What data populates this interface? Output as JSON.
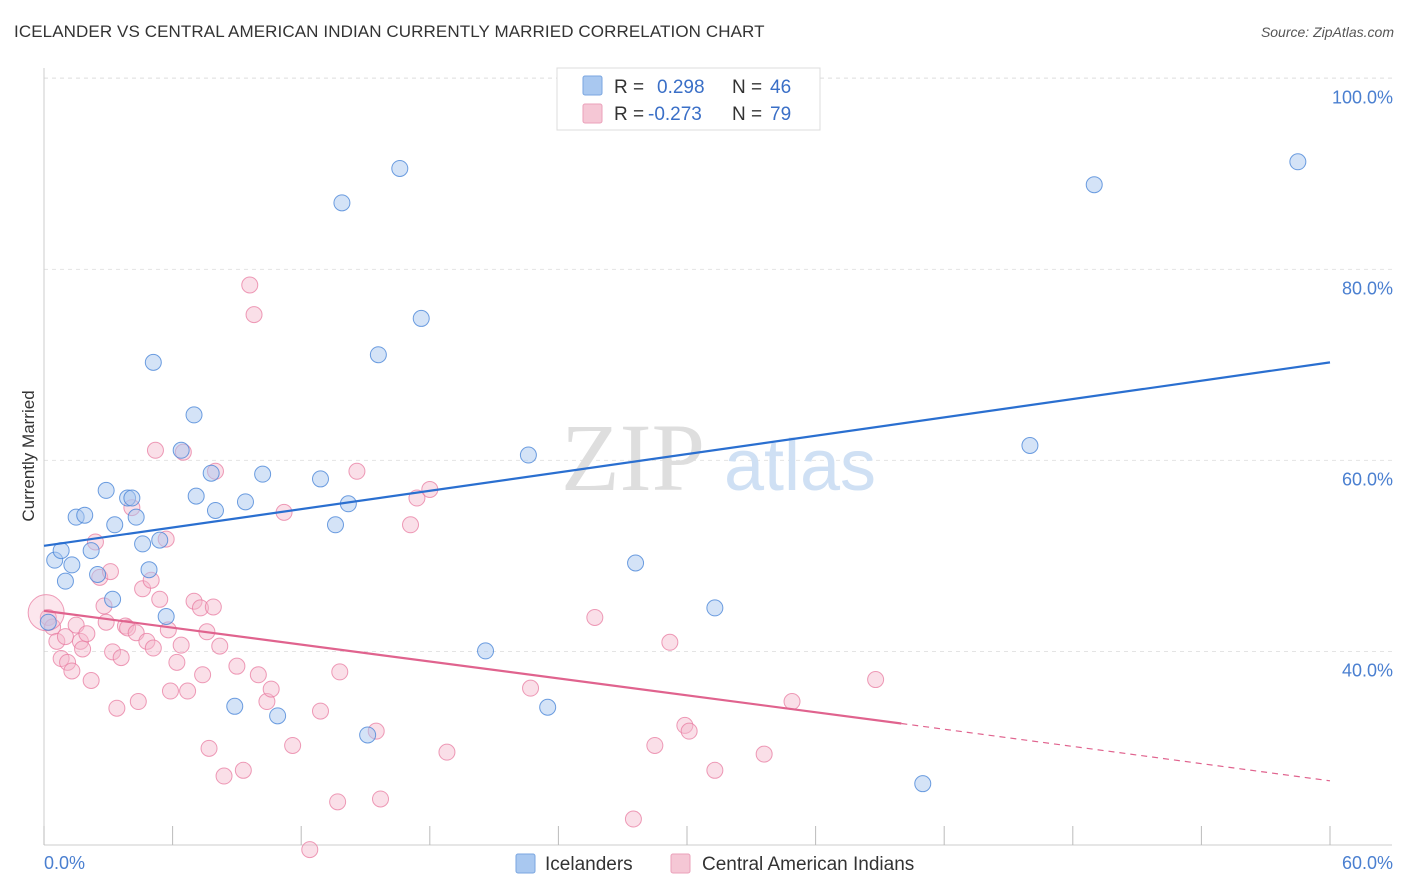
{
  "header": {
    "title": "ICELANDER VS CENTRAL AMERICAN INDIAN CURRENTLY MARRIED CORRELATION CHART",
    "source": "Source: ZipAtlas.com"
  },
  "watermark": {
    "zip": "ZIP",
    "atlas": "atlas"
  },
  "legend_top": {
    "rows": [
      {
        "r_label": "R =",
        "r_value": "0.298",
        "n_label": "N =",
        "n_value": "46",
        "color": "#a9c8f0"
      },
      {
        "r_label": "R =",
        "r_value": "-0.273",
        "n_label": "N =",
        "n_value": "79",
        "color": "#f5b8cb"
      }
    ]
  },
  "legend_bottom": {
    "items": [
      {
        "label": "Icelanders",
        "color": "#a9c8f0"
      },
      {
        "label": "Central American Indians",
        "color": "#f5b8cb"
      }
    ]
  },
  "chart_data": {
    "type": "scatter",
    "title": "ICELANDER VS CENTRAL AMERICAN INDIAN CURRENTLY MARRIED CORRELATION CHART",
    "xlabel": "",
    "ylabel": "Currently Married",
    "xlim": [
      0,
      60
    ],
    "ylim": [
      20,
      102
    ],
    "x_tick_labels": [
      "0.0%",
      "60.0%"
    ],
    "y_ticks": [
      40,
      60,
      80,
      100
    ],
    "y_tick_labels": [
      "40.0%",
      "60.0%",
      "80.0%",
      "100.0%"
    ],
    "grid": true,
    "legend_position": "top-center",
    "series": [
      {
        "name": "Icelanders",
        "color": "#4a86d8",
        "fill": "#a9c8f0",
        "trend": {
          "x": [
            0,
            60
          ],
          "y": [
            53.0,
            72.2
          ],
          "color": "#2a6fd0",
          "dashed_from": null
        },
        "points": [
          [
            0.2,
            45.0
          ],
          [
            0.5,
            51.5
          ],
          [
            0.8,
            52.5
          ],
          [
            1.0,
            49.3
          ],
          [
            1.3,
            51.0
          ],
          [
            1.5,
            56.0
          ],
          [
            1.9,
            56.2
          ],
          [
            2.2,
            52.5
          ],
          [
            2.5,
            50.0
          ],
          [
            2.9,
            58.8
          ],
          [
            3.2,
            47.4
          ],
          [
            3.3,
            55.2
          ],
          [
            3.9,
            58.0
          ],
          [
            4.1,
            58.0
          ],
          [
            4.3,
            56.0
          ],
          [
            4.6,
            53.2
          ],
          [
            4.9,
            50.5
          ],
          [
            5.1,
            72.2
          ],
          [
            5.4,
            53.6
          ],
          [
            5.7,
            45.6
          ],
          [
            6.4,
            63.0
          ],
          [
            7.0,
            66.7
          ],
          [
            7.1,
            58.2
          ],
          [
            7.8,
            60.6
          ],
          [
            8.0,
            56.7
          ],
          [
            8.9,
            36.2
          ],
          [
            9.4,
            57.6
          ],
          [
            10.2,
            60.5
          ],
          [
            10.9,
            35.2
          ],
          [
            12.9,
            60.0
          ],
          [
            13.6,
            55.2
          ],
          [
            13.9,
            88.9
          ],
          [
            14.2,
            57.4
          ],
          [
            15.1,
            33.2
          ],
          [
            15.6,
            73.0
          ],
          [
            16.6,
            92.5
          ],
          [
            17.6,
            76.8
          ],
          [
            20.6,
            42.0
          ],
          [
            22.6,
            62.5
          ],
          [
            23.5,
            36.1
          ],
          [
            27.6,
            51.2
          ],
          [
            31.3,
            46.5
          ],
          [
            41.0,
            28.1
          ],
          [
            46.0,
            63.5
          ],
          [
            49.0,
            90.8
          ],
          [
            58.5,
            93.2
          ]
        ]
      },
      {
        "name": "Central American Indians",
        "color": "#e87ba0",
        "fill": "#f5b8cb",
        "trend": {
          "x": [
            0,
            40,
            60
          ],
          "y": [
            46.2,
            34.4,
            28.4
          ],
          "color": "#e0638e",
          "dashed_from": 40
        },
        "points": [
          [
            0.2,
            45.5
          ],
          [
            0.4,
            44.5
          ],
          [
            0.6,
            43.0
          ],
          [
            0.8,
            41.2
          ],
          [
            1.0,
            43.5
          ],
          [
            1.1,
            40.8
          ],
          [
            1.3,
            39.9
          ],
          [
            1.5,
            44.7
          ],
          [
            1.7,
            43.0
          ],
          [
            1.8,
            42.2
          ],
          [
            2.0,
            43.8
          ],
          [
            2.2,
            38.9
          ],
          [
            2.4,
            53.4
          ],
          [
            2.6,
            49.7
          ],
          [
            2.8,
            46.7
          ],
          [
            2.9,
            45.0
          ],
          [
            3.1,
            50.3
          ],
          [
            3.2,
            41.9
          ],
          [
            3.4,
            36.0
          ],
          [
            3.6,
            41.3
          ],
          [
            3.8,
            44.6
          ],
          [
            3.9,
            44.4
          ],
          [
            4.1,
            57.0
          ],
          [
            4.3,
            43.9
          ],
          [
            4.4,
            36.7
          ],
          [
            4.6,
            48.5
          ],
          [
            4.8,
            43.0
          ],
          [
            5.0,
            49.4
          ],
          [
            5.1,
            42.3
          ],
          [
            5.2,
            63.0
          ],
          [
            5.4,
            47.4
          ],
          [
            5.7,
            53.7
          ],
          [
            5.8,
            44.2
          ],
          [
            5.9,
            37.8
          ],
          [
            6.2,
            40.8
          ],
          [
            6.4,
            42.6
          ],
          [
            6.5,
            62.8
          ],
          [
            6.7,
            37.8
          ],
          [
            7.0,
            47.2
          ],
          [
            7.3,
            46.5
          ],
          [
            7.4,
            39.5
          ],
          [
            7.6,
            44.0
          ],
          [
            7.7,
            31.8
          ],
          [
            7.9,
            46.6
          ],
          [
            8.0,
            60.8
          ],
          [
            8.2,
            42.5
          ],
          [
            8.4,
            28.9
          ],
          [
            9.0,
            40.4
          ],
          [
            9.3,
            29.5
          ],
          [
            9.6,
            80.3
          ],
          [
            9.8,
            77.2
          ],
          [
            10.0,
            39.5
          ],
          [
            10.4,
            36.7
          ],
          [
            10.6,
            38.0
          ],
          [
            11.2,
            56.5
          ],
          [
            11.6,
            32.1
          ],
          [
            12.4,
            21.2
          ],
          [
            12.9,
            35.7
          ],
          [
            13.7,
            26.2
          ],
          [
            13.8,
            39.8
          ],
          [
            14.6,
            60.8
          ],
          [
            15.5,
            33.6
          ],
          [
            15.7,
            26.5
          ],
          [
            17.1,
            55.2
          ],
          [
            17.4,
            58.0
          ],
          [
            18.0,
            58.9
          ],
          [
            18.8,
            31.4
          ],
          [
            22.7,
            38.1
          ],
          [
            25.7,
            45.5
          ],
          [
            27.5,
            24.4
          ],
          [
            28.5,
            32.1
          ],
          [
            29.2,
            42.9
          ],
          [
            29.9,
            34.2
          ],
          [
            30.1,
            33.6
          ],
          [
            31.3,
            29.5
          ],
          [
            33.6,
            31.2
          ],
          [
            34.9,
            36.7
          ],
          [
            38.8,
            39.0
          ],
          [
            0.1,
            46.0
          ]
        ]
      }
    ]
  }
}
